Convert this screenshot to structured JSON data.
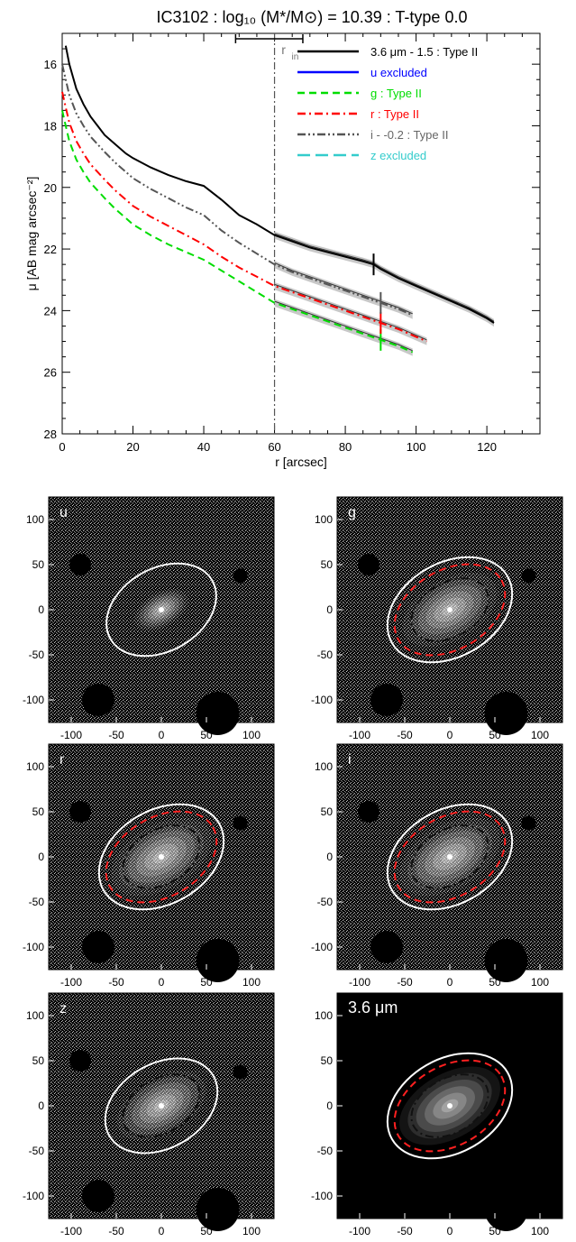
{
  "title": "IC3102 : log₁₀ (M*/M⊙) = 10.39 : T-type 0.0",
  "chart_data": [
    {
      "type": "line",
      "title": "IC3102 : log₁₀ (M*/M⊙) = 10.39 : T-type 0.0",
      "xlabel": "r [arcsec]",
      "ylabel": "μ [AB mag arcsec⁻²]",
      "xlim": [
        0,
        135
      ],
      "ylim": [
        28,
        15
      ],
      "y_inverted": true,
      "x_ticks": [
        0,
        20,
        40,
        60,
        80,
        100,
        120
      ],
      "y_ticks": [
        16,
        18,
        20,
        22,
        24,
        26,
        28
      ],
      "rin_label": "r",
      "rin_subscript": "in",
      "rin": 60,
      "rin_range": [
        49,
        68
      ],
      "legend_position": "top-right",
      "series": [
        {
          "name": "3.6 μm - 1.5 : Type II",
          "color": "#000000",
          "style": "solid",
          "x": [
            1,
            2,
            4,
            6,
            8,
            10,
            12,
            15,
            18,
            20,
            25,
            30,
            35,
            40,
            45,
            50,
            55,
            60,
            65,
            70,
            75,
            80,
            85,
            88,
            90,
            95,
            100,
            105,
            110,
            115,
            120,
            122
          ],
          "y": [
            15.4,
            16.0,
            16.8,
            17.3,
            17.7,
            18.0,
            18.3,
            18.6,
            18.9,
            19.05,
            19.35,
            19.6,
            19.8,
            19.95,
            20.4,
            20.9,
            21.2,
            21.55,
            21.75,
            21.95,
            22.1,
            22.25,
            22.4,
            22.5,
            22.65,
            22.95,
            23.2,
            23.45,
            23.7,
            23.95,
            24.25,
            24.4
          ],
          "break_r": 88
        },
        {
          "name": "u excluded",
          "color": "#0000ff",
          "style": "solid",
          "x": [],
          "y": []
        },
        {
          "name": "g : Type II",
          "color": "#00dd00",
          "style": "dashed",
          "x": [
            0,
            1,
            2,
            4,
            6,
            8,
            10,
            12,
            15,
            18,
            20,
            25,
            30,
            35,
            40,
            45,
            50,
            55,
            60,
            65,
            70,
            75,
            80,
            85,
            90,
            95,
            99
          ],
          "y": [
            17.5,
            18.0,
            18.5,
            19.1,
            19.5,
            19.85,
            20.1,
            20.35,
            20.7,
            21.0,
            21.2,
            21.55,
            21.85,
            22.1,
            22.35,
            22.7,
            23.05,
            23.4,
            23.75,
            23.95,
            24.15,
            24.35,
            24.55,
            24.75,
            24.95,
            25.15,
            25.35
          ],
          "break_r": 90
        },
        {
          "name": "r : Type II",
          "color": "#ff0000",
          "style": "dashdot",
          "x": [
            0,
            1,
            2,
            4,
            6,
            8,
            10,
            12,
            15,
            18,
            20,
            25,
            30,
            35,
            40,
            45,
            50,
            55,
            60,
            65,
            70,
            75,
            80,
            85,
            90,
            95,
            100,
            103
          ],
          "y": [
            16.9,
            17.4,
            17.9,
            18.5,
            18.9,
            19.25,
            19.5,
            19.75,
            20.1,
            20.4,
            20.6,
            20.95,
            21.25,
            21.55,
            21.85,
            22.25,
            22.6,
            22.9,
            23.2,
            23.4,
            23.6,
            23.8,
            24.0,
            24.2,
            24.4,
            24.6,
            24.85,
            25.0
          ],
          "break_r": 90
        },
        {
          "name": "i - -0.2 : Type II",
          "color": "#555555",
          "style": "dashdotdot",
          "x": [
            0,
            1,
            2,
            4,
            6,
            8,
            10,
            12,
            15,
            18,
            20,
            25,
            30,
            35,
            40,
            45,
            50,
            55,
            60,
            65,
            70,
            75,
            80,
            85,
            90,
            95,
            99
          ],
          "y": [
            16.0,
            16.5,
            17.0,
            17.6,
            18.0,
            18.35,
            18.6,
            18.85,
            19.2,
            19.5,
            19.7,
            20.05,
            20.35,
            20.65,
            20.9,
            21.4,
            21.8,
            22.15,
            22.5,
            22.75,
            22.95,
            23.15,
            23.35,
            23.55,
            23.75,
            23.95,
            24.15
          ],
          "break_r": 90
        },
        {
          "name": "z excluded",
          "color": "#33cccc",
          "style": "longdash",
          "x": [],
          "y": []
        }
      ]
    },
    {
      "type": "image",
      "panels": [
        {
          "label": "u",
          "bg": "#000000",
          "noise": true,
          "intensity": 0.45,
          "ellipses": [
            "white"
          ]
        },
        {
          "label": "g",
          "bg": "#000000",
          "noise": true,
          "intensity": 0.8,
          "ellipses": [
            "white",
            "red",
            "black"
          ]
        },
        {
          "label": "r",
          "bg": "#000000",
          "noise": true,
          "intensity": 0.85,
          "ellipses": [
            "white",
            "red",
            "black"
          ]
        },
        {
          "label": "i",
          "bg": "#000000",
          "noise": true,
          "intensity": 0.85,
          "ellipses": [
            "white",
            "red",
            "black"
          ]
        },
        {
          "label": "z",
          "bg": "#000000",
          "noise": true,
          "intensity": 0.75,
          "ellipses": [
            "white",
            "black"
          ]
        },
        {
          "label": "3.6 μm",
          "bg": "#000000",
          "noise": false,
          "intensity": 0.85,
          "ellipses": [
            "white",
            "red",
            "black"
          ]
        }
      ],
      "axis_ticks": [
        -100,
        -50,
        0,
        50,
        100
      ],
      "axis_range": [
        -125,
        125
      ]
    }
  ]
}
